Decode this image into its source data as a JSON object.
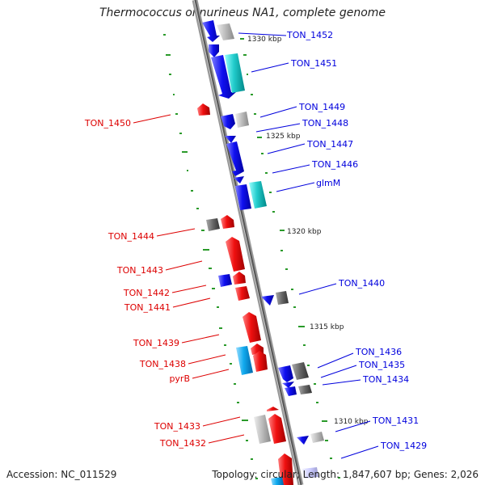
{
  "title": "Thermococcus onnurineus NA1, complete genome",
  "footer": {
    "accession": "Accession: NC_011529",
    "topology": "Topology: circular; Length: 1,847,607 bp; Genes: 2,026"
  },
  "colors": {
    "forward_strand": "#0000ee",
    "reverse_strand": "#ee0000",
    "gene_blue": "#1111ee",
    "gene_red": "#ee1111",
    "gene_cyan": "#33cccc",
    "gene_gray": "#aaaaaa",
    "gene_dark": "#555555",
    "backbone": "#888888",
    "gc_marks": "#229922"
  },
  "scale_marks": [
    "1330 kbp",
    "1325 kbp",
    "1320 kbp",
    "1315 kbp",
    "1310 kbp"
  ],
  "right_labels": [
    "TON_1452",
    "TON_1451",
    "TON_1449",
    "TON_1448",
    "TON_1447",
    "TON_1446",
    "glmM",
    "TON_1440",
    "TON_1436",
    "TON_1435",
    "TON_1434",
    "TON_1431",
    "TON_1429"
  ],
  "left_labels": [
    "TON_1450",
    "TON_1444",
    "TON_1443",
    "TON_1442",
    "TON_1441",
    "TON_1439",
    "TON_1438",
    "pyrB",
    "TON_1433",
    "TON_1432"
  ]
}
